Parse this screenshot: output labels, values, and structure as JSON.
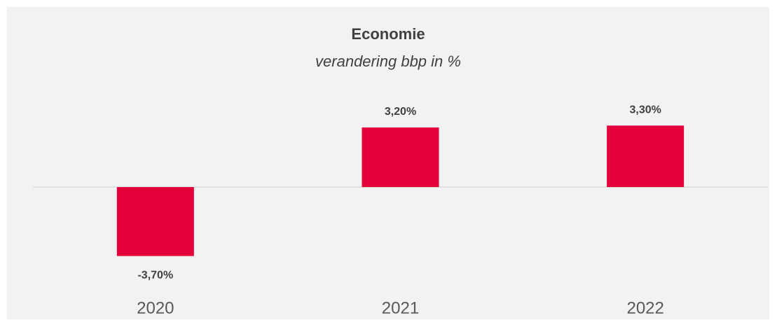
{
  "chart_data": {
    "type": "bar",
    "title": "Economie",
    "subtitle": "verandering bbp in %",
    "categories": [
      "2020",
      "2021",
      "2022"
    ],
    "values": [
      -3.7,
      3.2,
      3.3
    ],
    "value_labels": [
      "-3,70%",
      "3,20%",
      "3,30%"
    ],
    "color": "#e4003a",
    "ylim": [
      -5,
      5
    ]
  }
}
